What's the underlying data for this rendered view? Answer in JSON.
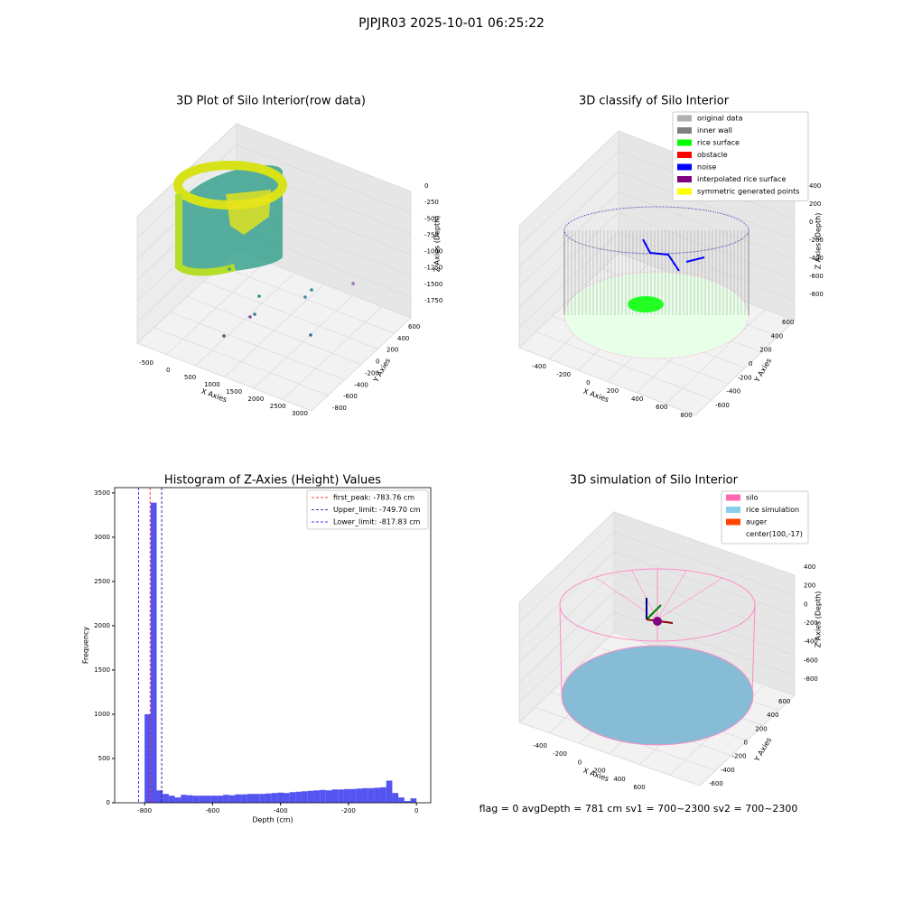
{
  "title": "PJPJR03 2025-10-01 06:25:22",
  "footer": "flag = 0     avgDepth = 781 cm  sv1 = 700~2300  sv2 = 700~2300",
  "chart_data": [
    {
      "type": "scatter3d",
      "title": "3D Plot of Silo Interior(row data)",
      "xlabel": "X Axies",
      "ylabel": "Y Axies",
      "zlabel": "Z Axies (Depth)",
      "xticks": [
        -500,
        0,
        500,
        1000,
        1500,
        2000,
        2500,
        3000
      ],
      "yticks": [
        -800,
        -600,
        -400,
        -200,
        0,
        200,
        400,
        600
      ],
      "zticks": [
        0,
        -250,
        -500,
        -750,
        -1000,
        -1250,
        -1500,
        -1750
      ]
    },
    {
      "type": "scatter3d",
      "title": "3D classify of Silo Interior",
      "xlabel": "X Axies",
      "ylabel": "Y Axies",
      "zlabel": "Z Axies (Depth)",
      "xticks": [
        -400,
        -200,
        0,
        200,
        400,
        600,
        800
      ],
      "yticks": [
        -600,
        -400,
        -200,
        0,
        200,
        400,
        600
      ],
      "zticks": [
        400,
        200,
        0,
        -200,
        -400,
        -600,
        -800
      ],
      "legend": [
        {
          "name": "original data",
          "color": "#b0b0b0"
        },
        {
          "name": "inner wall",
          "color": "#808080"
        },
        {
          "name": "rice surface",
          "color": "#00ff00"
        },
        {
          "name": "obstacle",
          "color": "#ff0000"
        },
        {
          "name": "noise",
          "color": "#0000ff"
        },
        {
          "name": "interpolated rice surface",
          "color": "#800080"
        },
        {
          "name": "symmetric generated points",
          "color": "#ffff00"
        }
      ]
    },
    {
      "type": "histogram",
      "title": "Histogram of Z-Axies (Height) Values",
      "xlabel": "Depth (cm)",
      "ylabel": "Frequency",
      "color": "#4b4bf0",
      "bins": [
        -800,
        -782.2,
        -764.4,
        -746.7,
        -728.9,
        -711.1,
        -693.3,
        -675.6,
        -657.8,
        -640,
        -622.2,
        -604.4,
        -586.7,
        -568.9,
        -551.1,
        -533.3,
        -515.6,
        -497.8,
        -480,
        -462.2,
        -444.4,
        -426.7,
        -408.9,
        -391.1,
        -373.3,
        -355.6,
        -337.8,
        -320,
        -302.2,
        -284.4,
        -266.7,
        -248.9,
        -231.1,
        -213.3,
        -195.6,
        -177.8,
        -160,
        -142.2,
        -124.4,
        -106.7,
        -88.9,
        -71.1,
        -53.3,
        -35.6,
        -17.8,
        0
      ],
      "values": [
        1000,
        3390,
        140,
        100,
        80,
        60,
        90,
        85,
        80,
        80,
        80,
        80,
        80,
        90,
        85,
        95,
        95,
        100,
        100,
        100,
        105,
        110,
        115,
        110,
        120,
        125,
        130,
        135,
        140,
        145,
        140,
        150,
        150,
        155,
        155,
        160,
        165,
        165,
        170,
        175,
        250,
        110,
        60,
        20,
        50
      ],
      "xlim": [
        -888,
        42
      ],
      "ylim": [
        0,
        3560
      ],
      "xticks": [
        -800,
        -600,
        -400,
        -200,
        0
      ],
      "yticks": [
        0,
        500,
        1000,
        1500,
        2000,
        2500,
        3000,
        3500
      ],
      "vlines": [
        {
          "name": "first_peak: -783.76 cm",
          "value": -783.76,
          "color": "#ff0000"
        },
        {
          "name": "Upper_limit: -749.70 cm",
          "value": -749.7,
          "color": "#00008b"
        },
        {
          "name": "Lower_limit: -817.83 cm",
          "value": -817.83,
          "color": "#0000ff"
        }
      ]
    },
    {
      "type": "surface3d",
      "title": "3D simulation of Silo Interior",
      "xlabel": "X Axies",
      "ylabel": "Y Axies",
      "zlabel": "Z Axies (Depth)",
      "xticks": [
        -400,
        -200,
        0,
        200,
        400,
        600
      ],
      "yticks": [
        -600,
        -400,
        -200,
        0,
        200,
        400,
        600
      ],
      "zticks": [
        400,
        200,
        0,
        -200,
        -400,
        -600,
        -800
      ],
      "legend": [
        {
          "name": "silo",
          "color": "#ff69b4"
        },
        {
          "name": "rice simulation",
          "color": "#87ceeb"
        },
        {
          "name": "auger",
          "color": "#ff4500"
        },
        {
          "name": "center(100,-17)"
        }
      ]
    }
  ]
}
